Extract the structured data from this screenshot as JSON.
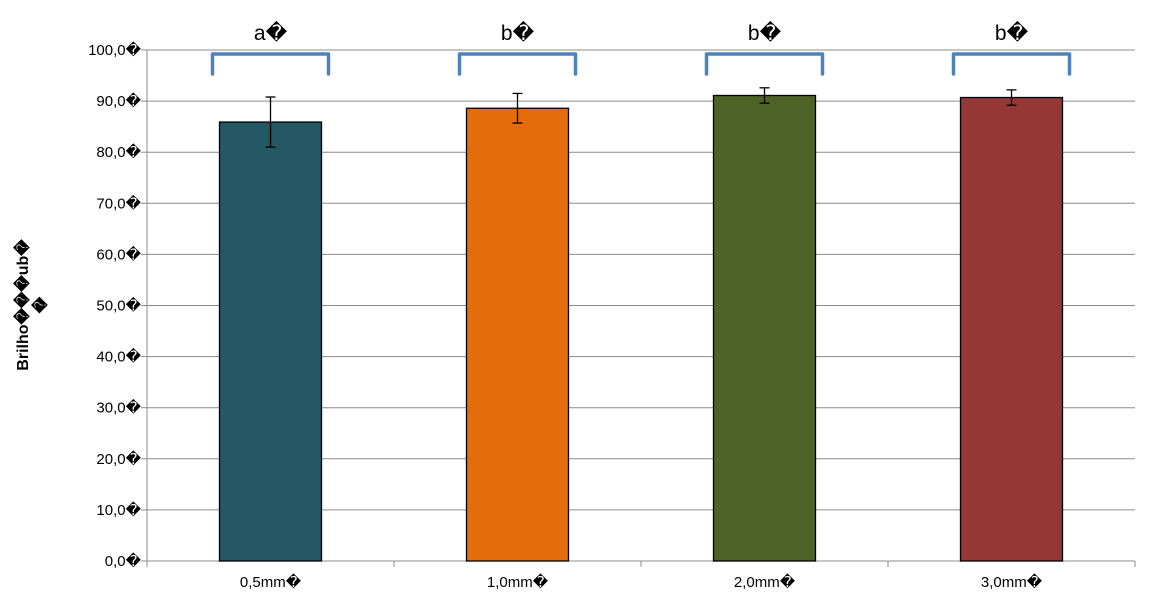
{
  "chart_data": {
    "type": "bar",
    "title": "",
    "xlabel": "",
    "ylabel": "Brilho���ub�\n�",
    "categories": [
      "0,5mm�",
      "1,0mm�",
      "2,0mm�",
      "3,0mm�"
    ],
    "values": [
      85.9,
      88.6,
      91.1,
      90.7
    ],
    "error": [
      4.9,
      2.9,
      1.5,
      1.5
    ],
    "significance": [
      "a�",
      "b�",
      "b�",
      "b�"
    ],
    "colors": [
      "#245864",
      "#e46c0a",
      "#4f6228",
      "#953735"
    ],
    "significance_bracket_color": "#4f81bd",
    "ylim": [
      0,
      100
    ],
    "yticks": [
      0,
      10,
      20,
      30,
      40,
      50,
      60,
      70,
      80,
      90,
      100
    ],
    "ytick_labels": [
      "0,0�",
      "10,0�",
      "20,0�",
      "30,0�",
      "40,0�",
      "50,0�",
      "60,0�",
      "70,0�",
      "80,0�",
      "90,0�",
      "100,0�"
    ],
    "grid": true,
    "legend": "none"
  }
}
